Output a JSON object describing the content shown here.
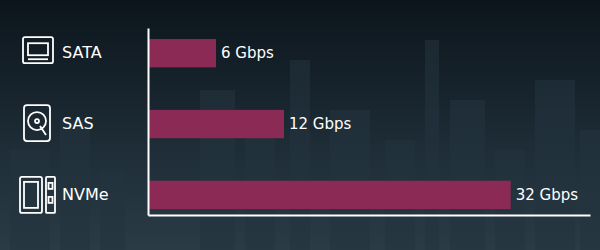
{
  "chart_data": {
    "type": "bar",
    "orientation": "horizontal",
    "categories": [
      "SATA",
      "SAS",
      "NVMe"
    ],
    "values": [
      6,
      12,
      32
    ],
    "value_labels": [
      "6 Gbps",
      "12 Gbps",
      "32 Gbps"
    ],
    "data_labels": true,
    "color": "#8b2a55",
    "xlim": [
      0,
      39
    ],
    "tick_labels": "y"
  }
}
